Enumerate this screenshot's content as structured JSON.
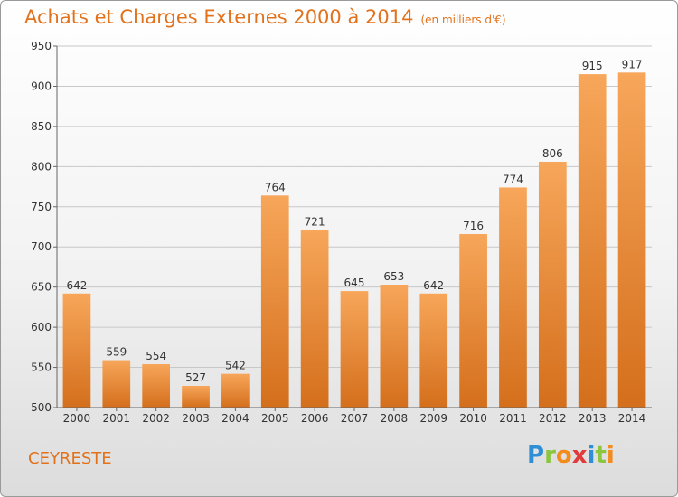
{
  "header": {
    "title": "Achats et Charges Externes 2000 à 2014",
    "subtitle": "(en milliers d'€)"
  },
  "footer": {
    "commune": "CEYRESTE",
    "logo_text": "Proxiti",
    "logo_letters": [
      {
        "ch": "P",
        "color": "#2e8fd6"
      },
      {
        "ch": "r",
        "color": "#8cc63f"
      },
      {
        "ch": "o",
        "color": "#f28c1e"
      },
      {
        "ch": "x",
        "color": "#e03a3a"
      },
      {
        "ch": "i",
        "color": "#2e8fd6"
      },
      {
        "ch": "t",
        "color": "#8cc63f"
      },
      {
        "ch": "i",
        "color": "#f28c1e"
      }
    ]
  },
  "colors": {
    "accent": "#e2711b",
    "bar_top": "#f7a65a",
    "bar_bottom": "#d46f1c",
    "grid": "#c8c8c8"
  },
  "chart_data": {
    "type": "bar",
    "title": "Achats et Charges Externes 2000 à 2014",
    "xlabel": "",
    "ylabel": "",
    "categories": [
      "2000",
      "2001",
      "2002",
      "2003",
      "2004",
      "2005",
      "2006",
      "2007",
      "2008",
      "2009",
      "2010",
      "2011",
      "2012",
      "2013",
      "2014"
    ],
    "values": [
      642,
      559,
      554,
      527,
      542,
      764,
      721,
      645,
      653,
      642,
      716,
      774,
      806,
      915,
      917
    ],
    "ylim": [
      500,
      950
    ],
    "yticks": [
      500,
      550,
      600,
      650,
      700,
      750,
      800,
      850,
      900,
      950
    ],
    "grid": true,
    "data_labels": true
  }
}
